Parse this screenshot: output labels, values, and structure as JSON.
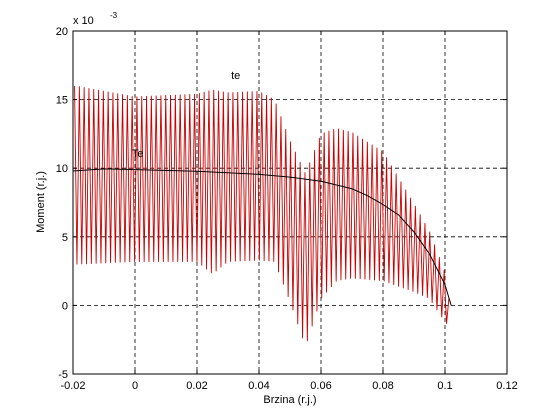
{
  "chart_data": {
    "type": "line",
    "xlabel": "Brzina (r.j.)",
    "ylabel": "Moment (r.j.)",
    "xlim": [
      -0.02,
      0.12
    ],
    "ylim": [
      -5,
      20
    ],
    "y_multiplier_label": "x 10",
    "y_multiplier_exponent": "-3",
    "grid": true,
    "grid_style": "dashed",
    "xticks": [
      -0.02,
      0,
      0.02,
      0.04,
      0.06,
      0.08,
      0.1,
      0.12
    ],
    "xtick_labels": [
      "-0.02",
      "0",
      "0.02",
      "0.04",
      "0.06",
      "0.08",
      "0.1",
      "0.12"
    ],
    "yticks": [
      -5,
      0,
      5,
      10,
      15,
      20
    ],
    "ytick_labels": [
      "-5",
      "0",
      "5",
      "10",
      "15",
      "20"
    ],
    "annotations": [
      {
        "text": "te",
        "x": 0.031,
        "y": 16.5
      },
      {
        "text": "Te",
        "x": -0.001,
        "y": 10.8
      }
    ],
    "series": [
      {
        "color": "#cc0000",
        "kind": "oscillating",
        "x": [
          -0.0195,
          0.0,
          0.02,
          0.025,
          0.03,
          0.04,
          0.045,
          0.05,
          0.055,
          0.06,
          0.065,
          0.07,
          0.08,
          0.09,
          0.095,
          0.1,
          0.102
        ],
        "upper": [
          16.0,
          15.2,
          15.4,
          15.7,
          15.5,
          15.6,
          15.0,
          12.0,
          9.6,
          12.5,
          12.9,
          12.6,
          11.2,
          7.4,
          5.4,
          2.4,
          -0.5
        ],
        "lower": [
          3.0,
          3.2,
          3.2,
          2.3,
          3.2,
          3.3,
          3.2,
          0.3,
          -3.0,
          0.5,
          1.8,
          2.0,
          1.8,
          1.0,
          0.5,
          -1.2,
          -1.7
        ]
      },
      {
        "color": "#000000",
        "kind": "steady-state",
        "x": [
          -0.02,
          -0.01,
          0.0,
          0.02,
          0.04,
          0.05,
          0.06,
          0.07,
          0.075,
          0.08,
          0.085,
          0.09,
          0.095,
          0.1,
          0.102
        ],
        "values": [
          9.8,
          9.95,
          9.9,
          9.78,
          9.55,
          9.35,
          9.05,
          8.5,
          8.0,
          7.35,
          6.6,
          5.35,
          3.75,
          1.5,
          0.0
        ]
      }
    ]
  }
}
